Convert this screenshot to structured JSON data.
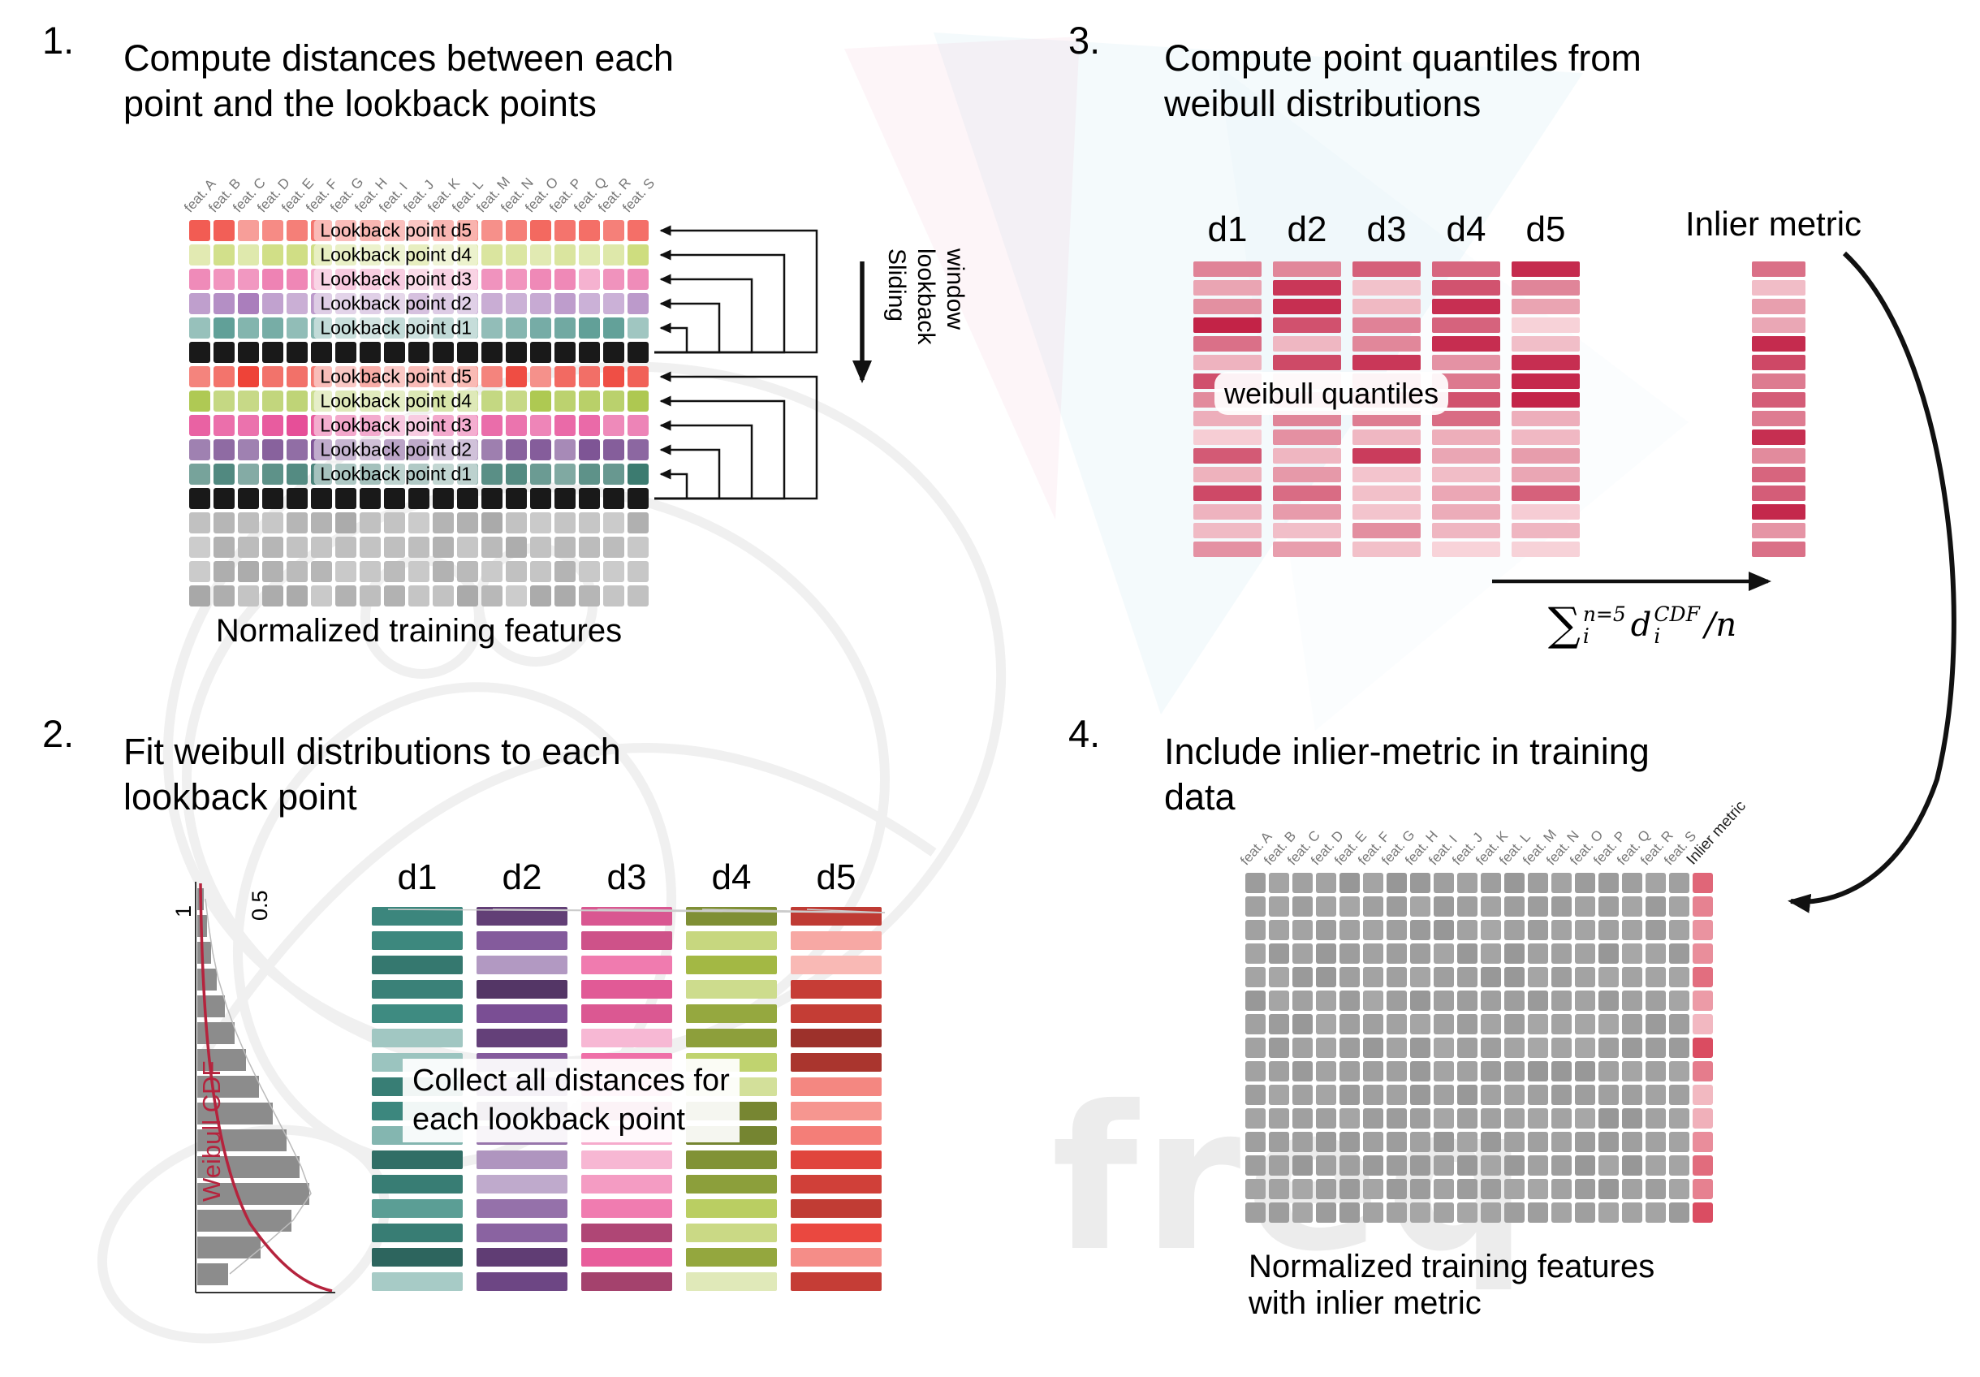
{
  "watermark": {
    "text": "freq"
  },
  "features": [
    "feat. A",
    "feat. B",
    "feat. C",
    "feat. D",
    "feat. E",
    "feat. F",
    "feat. G",
    "feat. H",
    "feat. I",
    "feat. J",
    "feat. K",
    "feat. L",
    "feat. M",
    "feat. N",
    "feat. O",
    "feat. P",
    "feat. Q",
    "feat. R",
    "feat. S"
  ],
  "panel1": {
    "number": "1.",
    "title": "Compute distances between each\npoint and the lookback points",
    "caption": "Normalized training features",
    "sliding_words": [
      "Sliding",
      "lookback",
      "window"
    ],
    "num_cols": 19,
    "rows": [
      {
        "type": "lookback",
        "label": "Lookback point d5",
        "color": "#f25b52"
      },
      {
        "type": "lookback",
        "label": "Lookback point d4",
        "color": "#cddc7d"
      },
      {
        "type": "lookback",
        "label": "Lookback point d3",
        "color": "#ee82b3"
      },
      {
        "type": "lookback",
        "label": "Lookback point d2",
        "color": "#a87cbb"
      },
      {
        "type": "lookback",
        "label": "Lookback point d1",
        "color": "#61a098"
      },
      {
        "type": "current",
        "color": "#191919"
      },
      {
        "type": "lookback",
        "label": "Lookback point d5",
        "color": "#ee4237"
      },
      {
        "type": "lookback",
        "label": "Lookback point d4",
        "color": "#a7c443"
      },
      {
        "type": "lookback",
        "label": "Lookback point d3",
        "color": "#e64f98"
      },
      {
        "type": "lookback",
        "label": "Lookback point d2",
        "color": "#6f4189"
      },
      {
        "type": "lookback",
        "label": "Lookback point d1",
        "color": "#2e7166"
      },
      {
        "type": "current",
        "color": "#191919"
      },
      {
        "type": "plain",
        "color": "#a8a8a8"
      },
      {
        "type": "plain",
        "color": "#a8a8a8"
      },
      {
        "type": "plain",
        "color": "#a8a8a8"
      },
      {
        "type": "plain",
        "color": "#a8a8a8"
      }
    ]
  },
  "panel2": {
    "number": "2.",
    "title": "Fit weibull distributions to each\nlookback point",
    "overlay": "Collect all distances for\neach lookback point",
    "plot": {
      "tick_1": "1",
      "tick_05": "0.5",
      "cdf_label": "Weibull CDF",
      "curve_color": "#b5233d",
      "bar_color": "#8c8c8c"
    },
    "bars_per_column": 16,
    "columns": [
      {
        "header": "d1",
        "color": "#3f8d83"
      },
      {
        "header": "d2",
        "color": "#7b4f95"
      },
      {
        "header": "d3",
        "color": "#ed5f9e"
      },
      {
        "header": "d4",
        "color": "#b0c74a"
      },
      {
        "header": "d5",
        "color": "#ef4a41"
      }
    ]
  },
  "panel3": {
    "number": "3.",
    "title": "Compute point quantiles from\nweibull distributions",
    "columns": [
      "d1",
      "d2",
      "d3",
      "d4",
      "d5"
    ],
    "overlay": "weibull quantiles",
    "inlier_header": "Inlier metric",
    "bars_per_column": 16,
    "bar_dark": "#c22045",
    "bar_light": "#f8d4da",
    "formula": {
      "sum": "∑",
      "sum_sup": "n=5",
      "sum_sub": "i",
      "d": "d",
      "d_sup": "CDF",
      "d_sub": "i",
      "tail": "/n"
    }
  },
  "panel4": {
    "number": "4.",
    "title": "Include inlier-metric in training\ndata",
    "caption": "Normalized training features\nwith inlier metric",
    "inlier_header": "Inlier metric",
    "rows": 15,
    "cols": 19,
    "gray_color": "#9d9d9d",
    "inlier_dark": "#d84258",
    "inlier_light": "#f5c6cd"
  }
}
